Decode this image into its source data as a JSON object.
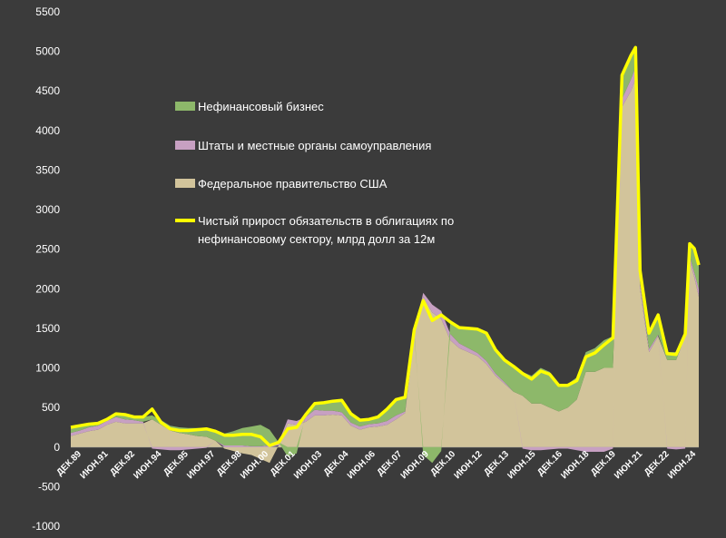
{
  "chart_data": {
    "type": "area",
    "title": "",
    "xlabel": "",
    "ylabel": "",
    "ylim": [
      -1000,
      5500
    ],
    "y_ticks": [
      -1000,
      -500,
      0,
      500,
      1000,
      1500,
      2000,
      2500,
      3000,
      3500,
      4000,
      4500,
      5000,
      5500
    ],
    "grid": false,
    "legend_position": "center-left",
    "x_start": "1989-12",
    "x_end": "2024-09",
    "x_tick_labels": [
      "ДЕК.89",
      "ИЮН.91",
      "ДЕК.92",
      "ИЮН.94",
      "ДЕК.95",
      "ИЮН.97",
      "ДЕК.98",
      "ИЮН.00",
      "ДЕК.01",
      "ИЮН.03",
      "ДЕК.04",
      "ИЮН.06",
      "ДЕК.07",
      "ИЮН.09",
      "ДЕК.10",
      "ИЮН.12",
      "ДЕК.13",
      "ИЮН.15",
      "ДЕК.16",
      "ИЮН.18",
      "ДЕК.19",
      "ИЮН.21",
      "ДЕК.22",
      "ИЮН.24"
    ],
    "x": [
      "1989-12",
      "1990-06",
      "1990-12",
      "1991-06",
      "1991-12",
      "1992-06",
      "1992-12",
      "1993-06",
      "1993-12",
      "1994-06",
      "1994-12",
      "1995-06",
      "1995-12",
      "1996-06",
      "1996-12",
      "1997-06",
      "1997-12",
      "1998-06",
      "1998-12",
      "1999-06",
      "1999-12",
      "2000-06",
      "2000-12",
      "2001-06",
      "2001-12",
      "2002-06",
      "2002-12",
      "2003-06",
      "2003-12",
      "2004-06",
      "2004-12",
      "2005-06",
      "2005-12",
      "2006-06",
      "2006-12",
      "2007-06",
      "2007-12",
      "2008-06",
      "2008-12",
      "2009-06",
      "2009-12",
      "2010-06",
      "2010-12",
      "2011-06",
      "2011-12",
      "2012-06",
      "2012-12",
      "2013-06",
      "2013-12",
      "2014-06",
      "2014-12",
      "2015-06",
      "2015-12",
      "2016-06",
      "2016-12",
      "2017-06",
      "2017-12",
      "2018-06",
      "2018-12",
      "2019-06",
      "2019-12",
      "2020-06",
      "2020-12",
      "2021-03",
      "2021-06",
      "2021-12",
      "2022-06",
      "2022-12",
      "2023-06",
      "2023-12",
      "2024-03",
      "2024-06",
      "2024-09"
    ],
    "series": [
      {
        "name": "Нефинансовый бизнес",
        "color": "#8db86a",
        "values": [
          70,
          60,
          40,
          20,
          20,
          40,
          60,
          40,
          60,
          50,
          60,
          60,
          70,
          80,
          100,
          110,
          120,
          150,
          180,
          220,
          250,
          270,
          200,
          0,
          -120,
          -80,
          30,
          80,
          100,
          120,
          150,
          110,
          80,
          60,
          80,
          150,
          200,
          180,
          60,
          -100,
          -200,
          -50,
          150,
          200,
          250,
          300,
          350,
          300,
          280,
          320,
          300,
          350,
          450,
          450,
          350,
          300,
          280,
          250,
          300,
          350,
          400,
          300,
          300,
          250,
          150,
          200,
          250,
          100,
          100,
          50,
          150,
          300,
          300
        ]
      },
      {
        "name": "Штаты и местные органы самоуправления",
        "color": "#c7a0c2",
        "values": [
          40,
          40,
          50,
          50,
          50,
          60,
          50,
          40,
          20,
          -20,
          -30,
          -40,
          -40,
          -30,
          -20,
          -10,
          0,
          20,
          20,
          20,
          10,
          10,
          20,
          40,
          50,
          50,
          60,
          70,
          60,
          50,
          40,
          40,
          40,
          40,
          40,
          50,
          50,
          20,
          20,
          50,
          100,
          100,
          80,
          60,
          50,
          40,
          40,
          30,
          20,
          0,
          -20,
          -40,
          -40,
          -30,
          -20,
          -20,
          -40,
          -60,
          -60,
          -60,
          -20,
          100,
          150,
          150,
          80,
          40,
          20,
          -20,
          -30,
          -20,
          60,
          60,
          100
        ]
      },
      {
        "name": "Федеральное правительство США",
        "color": "#d2c49b",
        "values": [
          140,
          170,
          200,
          220,
          280,
          320,
          300,
          300,
          300,
          350,
          280,
          210,
          180,
          160,
          140,
          130,
          80,
          -20,
          -50,
          -80,
          -100,
          -150,
          -200,
          20,
          300,
          280,
          320,
          400,
          400,
          410,
          400,
          270,
          220,
          250,
          260,
          280,
          350,
          430,
          1400,
          1900,
          1700,
          1620,
          1350,
          1250,
          1200,
          1150,
          1050,
          900,
          800,
          700,
          650,
          550,
          550,
          500,
          450,
          500,
          600,
          950,
          950,
          1000,
          1000,
          4300,
          4500,
          4650,
          2000,
          1200,
          1400,
          1100,
          1100,
          1400,
          2350,
          2150,
          1900
        ]
      },
      {
        "name": "Чистый прирост обязательств в облигациях по нефинансовому сектору, млрд долл за 12м",
        "color": "#ffff00",
        "values": [
          250,
          270,
          290,
          300,
          350,
          420,
          410,
          380,
          380,
          480,
          310,
          230,
          210,
          210,
          220,
          230,
          200,
          150,
          150,
          160,
          160,
          130,
          20,
          60,
          230,
          250,
          410,
          550,
          560,
          580,
          590,
          420,
          340,
          350,
          380,
          480,
          600,
          630,
          1480,
          1850,
          1600,
          1670,
          1580,
          1510,
          1500,
          1490,
          1440,
          1230,
          1100,
          1020,
          930,
          860,
          960,
          920,
          780,
          780,
          840,
          1140,
          1190,
          1290,
          1380,
          4700,
          4950,
          5050,
          2230,
          1440,
          1670,
          1180,
          1170,
          1430,
          2570,
          2510,
          2300
        ]
      }
    ]
  }
}
